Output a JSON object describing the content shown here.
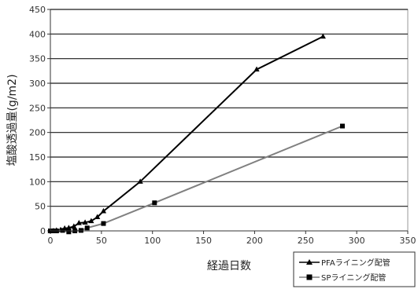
{
  "chart_data": {
    "type": "line",
    "xlabel": "経過日数",
    "ylabel": "塩酸透過量(g/m2)",
    "xlim": [
      0,
      350
    ],
    "ylim": [
      0,
      450
    ],
    "xticks": [
      0,
      50,
      100,
      150,
      200,
      250,
      300,
      350
    ],
    "yticks": [
      0,
      50,
      100,
      150,
      200,
      250,
      300,
      350,
      400,
      450
    ],
    "grid": "horizontal",
    "legend_position": "bottom-right",
    "series": [
      {
        "name": "PFAライニング配管",
        "marker": "triangle",
        "color": "#000000",
        "x": [
          0,
          3,
          6,
          10,
          14,
          18,
          23,
          28,
          34,
          40,
          46,
          52,
          88,
          202,
          267
        ],
        "y": [
          0,
          0,
          1,
          2,
          5,
          6,
          9,
          16,
          17,
          20,
          28,
          40,
          100,
          328,
          395
        ]
      },
      {
        "name": "SPライニング配管",
        "marker": "square",
        "color": "#808080",
        "x": [
          0,
          3,
          6,
          12,
          18,
          24,
          30,
          36,
          52,
          102,
          286
        ],
        "y": [
          0,
          0,
          0,
          1,
          -2,
          0,
          1,
          6,
          15,
          57,
          213
        ]
      }
    ]
  }
}
